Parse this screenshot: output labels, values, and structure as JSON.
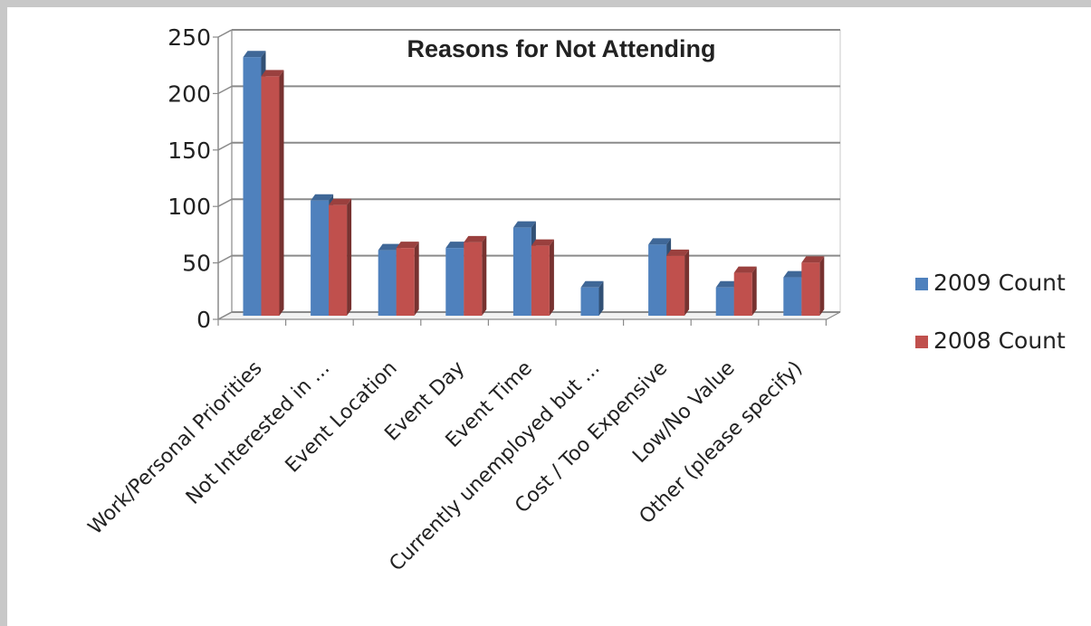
{
  "chart_data": {
    "type": "bar",
    "title": "Reasons for Not Attending",
    "xlabel": "",
    "ylabel": "",
    "ylim": [
      0,
      250
    ],
    "yticks": [
      0,
      50,
      100,
      150,
      200,
      250
    ],
    "grid": true,
    "style": "3d-clustered-column",
    "legend_position": "right",
    "categories": [
      "Work/Personal Priorities",
      "Not Interested in ...",
      "Event Location",
      "Event Day",
      "Event Time",
      "Currently unemployed but ...",
      "Cost / Too Expensive",
      "Low/No Value",
      "Other (please specify)"
    ],
    "series": [
      {
        "name": "2009 Count",
        "color": "#4f81bd",
        "values": [
          229,
          102,
          58,
          60,
          78,
          25,
          63,
          25,
          34
        ]
      },
      {
        "name": "2008 Count",
        "color": "#c0504d",
        "values": [
          212,
          98,
          60,
          65,
          62,
          0,
          53,
          38,
          47
        ]
      }
    ]
  }
}
